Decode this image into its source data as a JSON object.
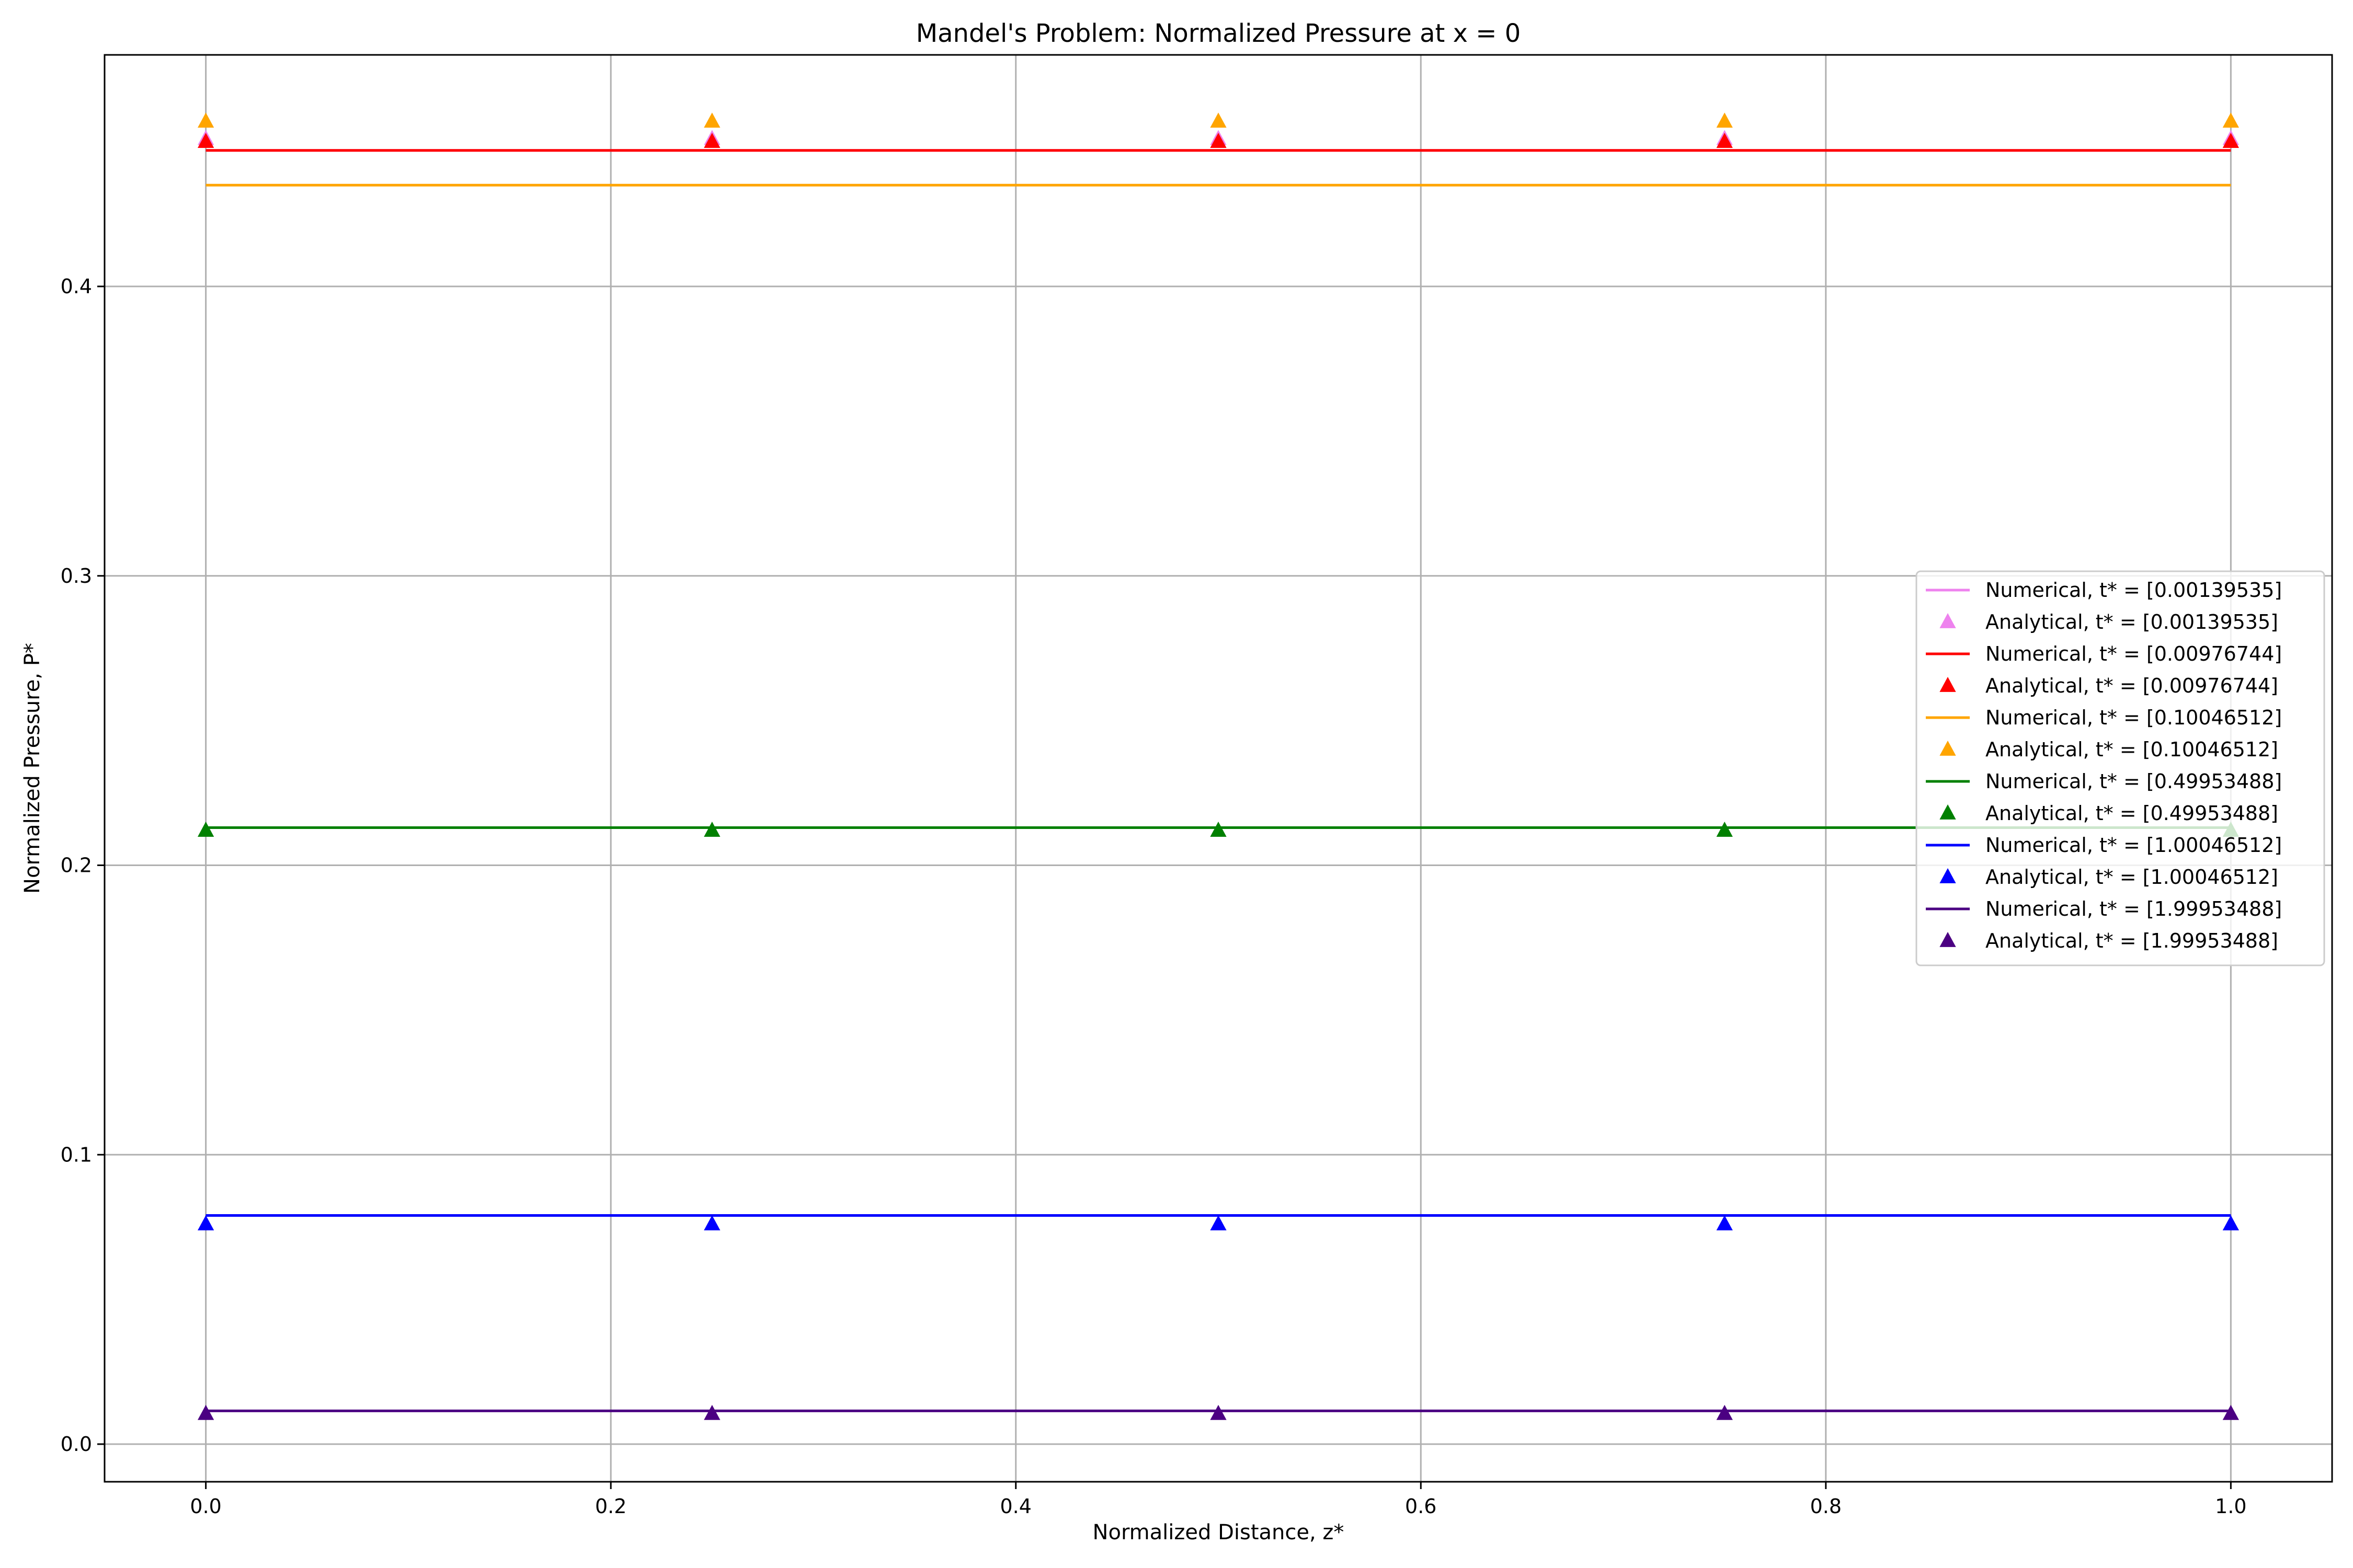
{
  "chart_data": {
    "type": "line",
    "title": "Mandel's Problem: Normalized Pressure at x = 0",
    "xlabel": "Normalized Distance, z*",
    "ylabel": "Normalized Pressure, P*",
    "xlim": [
      -0.05,
      1.05
    ],
    "ylim": [
      -0.013,
      0.48
    ],
    "xticks": [
      0.0,
      0.2,
      0.4,
      0.6,
      0.8,
      1.0
    ],
    "xtick_labels": [
      "0.0",
      "0.2",
      "0.4",
      "0.6",
      "0.8",
      "1.0"
    ],
    "yticks": [
      0.0,
      0.1,
      0.2,
      0.3,
      0.4
    ],
    "ytick_labels": [
      "0.0",
      "0.1",
      "0.2",
      "0.3",
      "0.4"
    ],
    "grid": true,
    "legend_position": "center-right",
    "x": [
      0.0,
      0.25,
      0.5,
      0.75,
      1.0
    ],
    "series": [
      {
        "name": "Numerical, t* = [0.00139535]",
        "kind": "line",
        "color": "#ee82ee",
        "values": [
          0.447,
          0.447,
          0.447,
          0.447,
          0.447
        ]
      },
      {
        "name": "Analytical, t* = [0.00139535]",
        "kind": "marker",
        "color": "#ee82ee",
        "values": [
          0.451,
          0.451,
          0.451,
          0.451,
          0.451
        ]
      },
      {
        "name": "Numerical, t* = [0.00976744]",
        "kind": "line",
        "color": "#ff0000",
        "values": [
          0.447,
          0.447,
          0.447,
          0.447,
          0.447
        ]
      },
      {
        "name": "Analytical, t* = [0.00976744]",
        "kind": "marker",
        "color": "#ff0000",
        "values": [
          0.45,
          0.45,
          0.45,
          0.45,
          0.45
        ]
      },
      {
        "name": "Numerical, t* = [0.10046512]",
        "kind": "line",
        "color": "#ffa500",
        "values": [
          0.435,
          0.435,
          0.435,
          0.435,
          0.435
        ]
      },
      {
        "name": "Analytical, t* = [0.10046512]",
        "kind": "marker",
        "color": "#ffa500",
        "values": [
          0.457,
          0.457,
          0.457,
          0.457,
          0.457
        ]
      },
      {
        "name": "Numerical, t* = [0.49953488]",
        "kind": "line",
        "color": "#008000",
        "values": [
          0.213,
          0.213,
          0.213,
          0.213,
          0.213
        ]
      },
      {
        "name": "Analytical, t* = [0.49953488]",
        "kind": "marker",
        "color": "#008000",
        "values": [
          0.212,
          0.212,
          0.212,
          0.212,
          0.212
        ]
      },
      {
        "name": "Numerical, t* = [1.00046512]",
        "kind": "line",
        "color": "#0000ff",
        "values": [
          0.079,
          0.079,
          0.079,
          0.079,
          0.079
        ]
      },
      {
        "name": "Analytical, t* = [1.00046512]",
        "kind": "marker",
        "color": "#0000ff",
        "values": [
          0.076,
          0.076,
          0.076,
          0.076,
          0.076
        ]
      },
      {
        "name": "Numerical, t* = [1.99953488]",
        "kind": "line",
        "color": "#4b0082",
        "values": [
          0.0115,
          0.0115,
          0.0115,
          0.0115,
          0.0115
        ]
      },
      {
        "name": "Analytical, t* = [1.99953488]",
        "kind": "marker",
        "color": "#4b0082",
        "values": [
          0.0105,
          0.0105,
          0.0105,
          0.0105,
          0.0105
        ]
      }
    ]
  }
}
